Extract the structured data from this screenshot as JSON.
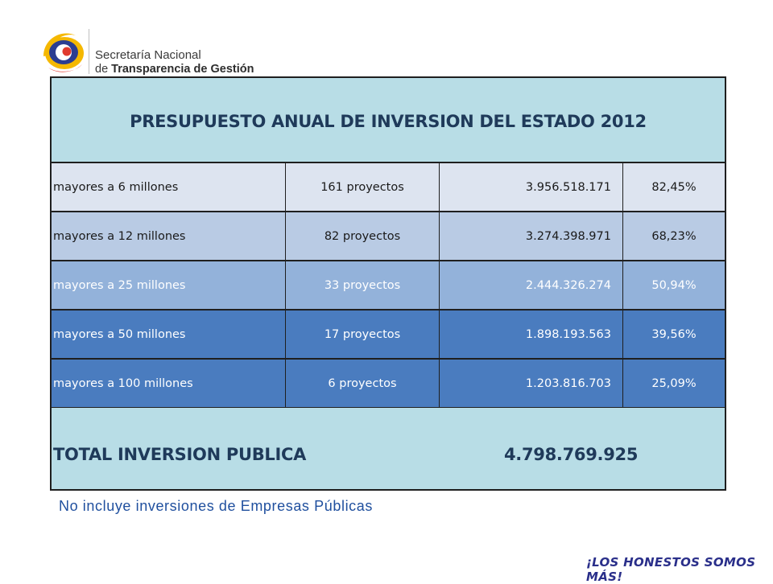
{
  "logo": {
    "line1": "Secretaría Nacional",
    "line2_prefix": "de ",
    "line2_bold": "Transparencia de Gestión",
    "colors": {
      "yellow": "#f5b800",
      "blue": "#2b3d91",
      "red": "#e03a2e"
    }
  },
  "table": {
    "title": "PRESUPUESTO ANUAL DE INVERSION DEL ESTADO 2012",
    "rows": [
      {
        "label": "mayores a 6 millones",
        "projects": "161 proyectos",
        "amount": "3.956.518.171",
        "percent": "82,45%",
        "bg": "#dde4f0",
        "fg": "#1a1a1a"
      },
      {
        "label": "mayores a 12 millones",
        "projects": "82 proyectos",
        "amount": "3.274.398.971",
        "percent": "68,23%",
        "bg": "#b9cbe4",
        "fg": "#1a1a1a"
      },
      {
        "label": "mayores a 25 millones",
        "projects": "33 proyectos",
        "amount": "2.444.326.274",
        "percent": "50,94%",
        "bg": "#93b2da",
        "fg": "#ffffff"
      },
      {
        "label": "mayores a 50 millones",
        "projects": "17 proyectos",
        "amount": "1.898.193.563",
        "percent": "39,56%",
        "bg": "#4a7cbf",
        "fg": "#ffffff"
      },
      {
        "label": "mayores a 100 millones",
        "projects": "6 proyectos",
        "amount": "1.203.816.703",
        "percent": "25,09%",
        "bg": "#4a7cbf",
        "fg": "#ffffff"
      }
    ],
    "total_label": "TOTAL INVERSION PUBLICA",
    "total_value": "4.798.769.925",
    "header_bg": "#b8dde6",
    "header_fg": "#1f3a5a"
  },
  "footnote": "No incluye inversiones de Empresas Públicas",
  "slogan": "¡LOS HONESTOS SOMOS MÁS!"
}
